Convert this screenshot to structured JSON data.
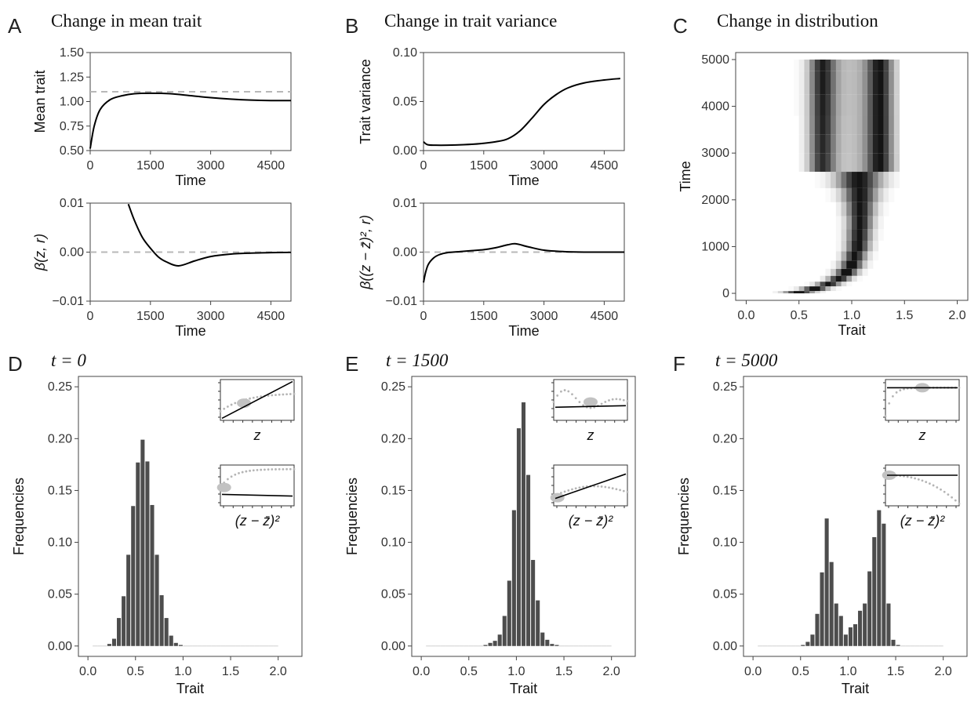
{
  "chart_data": [
    {
      "panel": "A-top",
      "type": "line",
      "panel_letter": "A",
      "title": "Change in mean trait",
      "xlabel": "Time",
      "ylabel": "Mean trait",
      "xlim": [
        0,
        5000
      ],
      "ylim": [
        0.5,
        1.5
      ],
      "x_ticks": [
        0,
        1500,
        3000,
        4500
      ],
      "x_tick_labels": [
        "0",
        "1500",
        "3000",
        "4500"
      ],
      "y_ticks": [
        0.5,
        0.75,
        1.0,
        1.25,
        1.5
      ],
      "y_tick_labels": [
        "0.50",
        "0.75",
        "1.00",
        "1.25",
        "1.50"
      ],
      "reference_line": 1.1,
      "series": [
        {
          "x": [
            0,
            100,
            250,
            500,
            800,
            1100,
            1500,
            2000,
            2500,
            3000,
            3500,
            4000,
            4500,
            5000
          ],
          "values": [
            0.52,
            0.75,
            0.92,
            1.02,
            1.06,
            1.08,
            1.085,
            1.08,
            1.06,
            1.04,
            1.025,
            1.015,
            1.01,
            1.01
          ]
        }
      ]
    },
    {
      "panel": "A-bottom",
      "type": "line",
      "xlabel": "Time",
      "ylabel": "β(z, r)",
      "xlim": [
        0,
        5000
      ],
      "ylim": [
        -0.01,
        0.01
      ],
      "x_ticks": [
        0,
        1500,
        3000,
        4500
      ],
      "x_tick_labels": [
        "0",
        "1500",
        "3000",
        "4500"
      ],
      "y_ticks": [
        -0.01,
        0.0,
        0.01
      ],
      "y_tick_labels": [
        "−0.01",
        "0.00",
        "0.01"
      ],
      "reference_line": 0.0,
      "series": [
        {
          "x": [
            950,
            1100,
            1300,
            1500,
            1700,
            1900,
            2200,
            2600,
            3000,
            3500,
            4000,
            4500,
            5000
          ],
          "values": [
            0.0098,
            0.0065,
            0.003,
            0.0008,
            -0.001,
            -0.002,
            -0.0028,
            -0.0018,
            -0.0009,
            -0.0004,
            -0.0002,
            -0.0001,
            -5e-05
          ]
        }
      ]
    },
    {
      "panel": "B-top",
      "type": "line",
      "panel_letter": "B",
      "title": "Change in trait variance",
      "xlabel": "Time",
      "ylabel": "Trait variance",
      "xlim": [
        0,
        5000
      ],
      "ylim": [
        0,
        0.1
      ],
      "x_ticks": [
        0,
        1500,
        3000,
        4500
      ],
      "x_tick_labels": [
        "0",
        "1500",
        "3000",
        "4500"
      ],
      "y_ticks": [
        0,
        0.05,
        0.1
      ],
      "y_tick_labels": [
        "0.00",
        "0.05",
        "0.10"
      ],
      "series": [
        {
          "x": [
            0,
            100,
            300,
            600,
            1000,
            1400,
            1800,
            2100,
            2400,
            2700,
            3000,
            3300,
            3600,
            4000,
            4500,
            4900
          ],
          "values": [
            0.009,
            0.006,
            0.0055,
            0.0055,
            0.006,
            0.007,
            0.009,
            0.012,
            0.02,
            0.033,
            0.047,
            0.057,
            0.064,
            0.069,
            0.072,
            0.0735
          ]
        }
      ]
    },
    {
      "panel": "B-bottom",
      "type": "line",
      "xlabel": "Time",
      "ylabel": "β((z − z̄)², r)",
      "xlim": [
        0,
        5000
      ],
      "ylim": [
        -0.01,
        0.01
      ],
      "x_ticks": [
        0,
        1500,
        3000,
        4500
      ],
      "x_tick_labels": [
        "0",
        "1500",
        "3000",
        "4500"
      ],
      "y_ticks": [
        -0.01,
        0.0,
        0.01
      ],
      "y_tick_labels": [
        "−0.01",
        "0.00",
        "0.01"
      ],
      "reference_line": 0.0,
      "series": [
        {
          "x": [
            0,
            50,
            120,
            250,
            400,
            600,
            900,
            1200,
            1500,
            1800,
            2100,
            2300,
            2600,
            3000,
            3500,
            4000,
            5000
          ],
          "values": [
            -0.0062,
            -0.0042,
            -0.0025,
            -0.0012,
            -0.0005,
            -0.0001,
            0.0001,
            0.0003,
            0.0005,
            0.0009,
            0.0015,
            0.0017,
            0.0011,
            0.0004,
            0.0001,
            0.0,
            0.0
          ]
        }
      ]
    },
    {
      "panel": "C",
      "type": "heatmap",
      "panel_letter": "C",
      "title": "Change in distribution",
      "xlabel": "Trait",
      "ylabel": "Time",
      "xlim": [
        -0.1,
        2.1
      ],
      "ylim": [
        -150,
        5150
      ],
      "x_ticks": [
        0,
        0.5,
        1.0,
        1.5,
        2.0
      ],
      "x_tick_labels": [
        "0.0",
        "0.5",
        "1.0",
        "1.5",
        "2.0"
      ],
      "y_ticks": [
        0,
        1000,
        2000,
        3000,
        4000,
        5000
      ],
      "y_tick_labels": [
        "0",
        "1000",
        "2000",
        "3000",
        "4000",
        "5000"
      ],
      "bins_start": 0.15,
      "bin_width": 0.05,
      "n_bins": 26,
      "times": [
        0,
        100,
        200,
        300,
        450,
        600,
        800,
        1000,
        1250,
        1500,
        1800,
        2100,
        2400,
        2800,
        3200,
        3600,
        4000,
        4500,
        5000
      ],
      "means": [
        0.5,
        0.65,
        0.78,
        0.88,
        0.95,
        1.0,
        1.03,
        1.06,
        1.07,
        1.08,
        1.08,
        1.08,
        1.07,
        1.06,
        1.05,
        1.04,
        1.03,
        1.02,
        1.02
      ],
      "variances": [
        0.0095,
        0.007,
        0.006,
        0.0055,
        0.0055,
        0.0055,
        0.0057,
        0.006,
        0.0065,
        0.007,
        0.009,
        0.013,
        0.022,
        0.04,
        0.055,
        0.063,
        0.068,
        0.072,
        0.0735
      ],
      "bimodal_modes": [
        0.72,
        1.27
      ]
    },
    {
      "panel": "D",
      "type": "bar",
      "panel_letter": "D",
      "title": "t = 0",
      "xlabel": "Trait",
      "ylabel": "Frequencies",
      "xlim": [
        -0.1,
        2.25
      ],
      "ylim": [
        -0.01,
        0.26
      ],
      "x_ticks": [
        0,
        0.5,
        1.0,
        1.5,
        2.0
      ],
      "x_tick_labels": [
        "0.0",
        "0.5",
        "1.0",
        "1.5",
        "2.0"
      ],
      "y_ticks": [
        0,
        0.05,
        0.1,
        0.15,
        0.2,
        0.25
      ],
      "y_tick_labels": [
        "0.00",
        "0.05",
        "0.10",
        "0.15",
        "0.20",
        "0.25"
      ],
      "bins_start": 0.05,
      "bin_width": 0.05,
      "values": [
        0.0,
        0.0,
        0.0,
        0.002,
        0.007,
        0.027,
        0.048,
        0.088,
        0.135,
        0.177,
        0.199,
        0.178,
        0.136,
        0.088,
        0.049,
        0.027,
        0.01,
        0.003,
        0.001,
        0.0,
        0.0,
        0.0,
        0.0,
        0.0,
        0.0,
        0.0,
        0.0,
        0.0,
        0.0,
        0.0,
        0.0,
        0.0,
        0.0,
        0.0,
        0.0,
        0.0,
        0.0,
        0.0,
        0.0,
        0.0
      ],
      "inset_labels": [
        "z",
        "(z − z̄)²"
      ]
    },
    {
      "panel": "E",
      "type": "bar",
      "panel_letter": "E",
      "title": "t = 1500",
      "xlabel": "Trait",
      "ylabel": "Frequencies",
      "xlim": [
        -0.1,
        2.25
      ],
      "ylim": [
        -0.01,
        0.26
      ],
      "x_ticks": [
        0,
        0.5,
        1.0,
        1.5,
        2.0
      ],
      "x_tick_labels": [
        "0.0",
        "0.5",
        "1.0",
        "1.5",
        "2.0"
      ],
      "y_ticks": [
        0,
        0.05,
        0.1,
        0.15,
        0.2,
        0.25
      ],
      "y_tick_labels": [
        "0.00",
        "0.05",
        "0.10",
        "0.15",
        "0.20",
        "0.25"
      ],
      "bins_start": 0.05,
      "bin_width": 0.05,
      "values": [
        0,
        0,
        0,
        0,
        0,
        0,
        0,
        0,
        0,
        0,
        0,
        0,
        0.001,
        0.003,
        0.005,
        0.011,
        0.029,
        0.063,
        0.131,
        0.21,
        0.235,
        0.165,
        0.083,
        0.044,
        0.013,
        0.006,
        0.002,
        0.001,
        0,
        0,
        0,
        0,
        0,
        0,
        0,
        0,
        0,
        0,
        0,
        0
      ],
      "inset_labels": [
        "z",
        "(z − z̄)²"
      ]
    },
    {
      "panel": "F",
      "type": "bar",
      "panel_letter": "F",
      "title": "t = 5000",
      "xlabel": "Trait",
      "ylabel": "Frequencies",
      "xlim": [
        -0.1,
        2.25
      ],
      "ylim": [
        -0.01,
        0.26
      ],
      "x_ticks": [
        0,
        0.5,
        1.0,
        1.5,
        2.0
      ],
      "x_tick_labels": [
        "0.0",
        "0.5",
        "1.0",
        "1.5",
        "2.0"
      ],
      "y_ticks": [
        0,
        0.05,
        0.1,
        0.15,
        0.2,
        0.25
      ],
      "y_tick_labels": [
        "0.00",
        "0.05",
        "0.10",
        "0.15",
        "0.20",
        "0.25"
      ],
      "bins_start": 0.05,
      "bin_width": 0.05,
      "values": [
        0,
        0,
        0,
        0,
        0,
        0,
        0,
        0,
        0,
        0.001,
        0.004,
        0.011,
        0.031,
        0.071,
        0.123,
        0.081,
        0.041,
        0.029,
        0.011,
        0.018,
        0.021,
        0.034,
        0.041,
        0.072,
        0.105,
        0.131,
        0.118,
        0.041,
        0.006,
        0.001,
        0,
        0,
        0,
        0,
        0,
        0,
        0,
        0,
        0,
        0
      ],
      "inset_labels": [
        "z",
        "(z − z̄)²"
      ]
    }
  ]
}
